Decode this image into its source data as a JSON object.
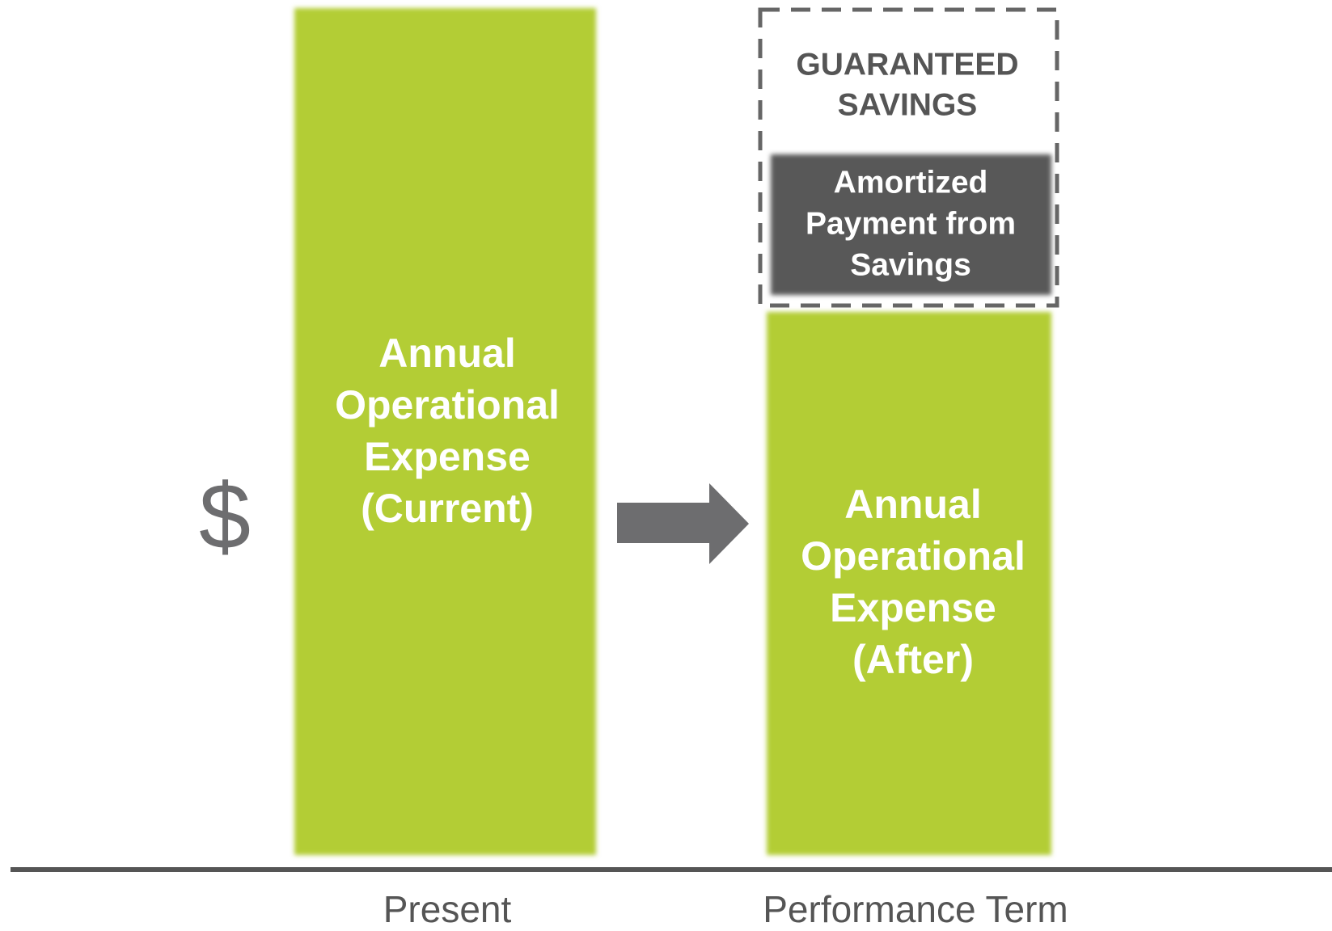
{
  "y_label": "$",
  "bars": [
    {
      "lines": [
        "Annual",
        "Operational",
        "Expense",
        "(Current)"
      ],
      "category": "Present"
    },
    {
      "lines": [
        "Annual",
        "Operational",
        "Expense",
        "(After)"
      ],
      "category": "Performance Term"
    }
  ],
  "payment_box": {
    "lines": [
      "Amortized",
      "Payment from",
      "Savings"
    ]
  },
  "savings_box": {
    "lines": [
      "GUARANTEED",
      "SAVINGS"
    ]
  }
}
